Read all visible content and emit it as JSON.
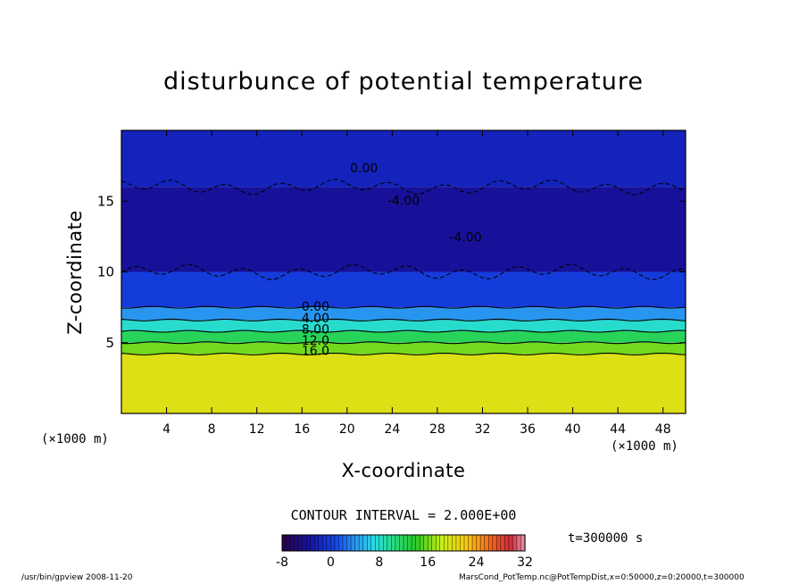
{
  "chart_data": {
    "type": "heatmap",
    "title": "disturbunce of potential temperature",
    "xlabel": "X-coordinate",
    "ylabel": "Z-coordinate",
    "x_unit_left": "(×1000 m)",
    "x_unit_right": "(×1000 m)",
    "xlim": [
      0,
      50
    ],
    "ylim": [
      0,
      20
    ],
    "x_ticks": [
      4,
      8,
      12,
      16,
      20,
      24,
      28,
      32,
      36,
      40,
      44,
      48
    ],
    "x_tick_labels": [
      "4",
      "8",
      "12",
      "16",
      "20",
      "24",
      "28",
      "32",
      "36",
      "40",
      "44",
      "48"
    ],
    "y_ticks": [
      5,
      10,
      15
    ],
    "y_tick_labels": [
      "5",
      "10",
      "15"
    ],
    "contour_interval_text": "CONTOUR INTERVAL = 2.000E+00",
    "time_text": "t=300000 s",
    "colorbar": {
      "min": -8,
      "max": 32,
      "ticks": [
        -8,
        0,
        8,
        16,
        24,
        32
      ],
      "tick_labels": [
        "-8",
        "0",
        "8",
        "16",
        "24",
        "32"
      ]
    },
    "contour_labels": [
      {
        "text": "0.00",
        "x": 21.5,
        "z": 17.3
      },
      {
        "text": "-4.00",
        "x": 25.0,
        "z": 15.0
      },
      {
        "text": "-4.00",
        "x": 30.5,
        "z": 12.4
      },
      {
        "text": "0.00",
        "x": 17.2,
        "z": 7.5
      },
      {
        "text": "4.00",
        "x": 17.2,
        "z": 6.7
      },
      {
        "text": "8.00",
        "x": 17.2,
        "z": 5.9
      },
      {
        "text": "12.0",
        "x": 17.2,
        "z": 5.1
      },
      {
        "text": "16.0",
        "x": 17.2,
        "z": 4.4
      }
    ],
    "field_summary": [
      {
        "z_range": [
          0,
          4.2
        ],
        "value": 20
      },
      {
        "z_range": [
          4.2,
          5.0
        ],
        "value": 16
      },
      {
        "z_range": [
          5.0,
          5.8
        ],
        "value": 12
      },
      {
        "z_range": [
          5.8,
          6.6
        ],
        "value": 8
      },
      {
        "z_range": [
          6.6,
          7.5
        ],
        "value": 4
      },
      {
        "z_range": [
          7.5,
          10.0
        ],
        "value": 0
      },
      {
        "z_range": [
          10.0,
          16.0
        ],
        "value": -4
      },
      {
        "z_range": [
          16.0,
          20.0
        ],
        "value": -2
      }
    ]
  },
  "footer": {
    "left": "/usr/bin/gpview   2008-11-20",
    "right": "MarsCond_PotTemp.nc@PotTempDist,x=0:50000,z=0:20000,t=300000"
  }
}
